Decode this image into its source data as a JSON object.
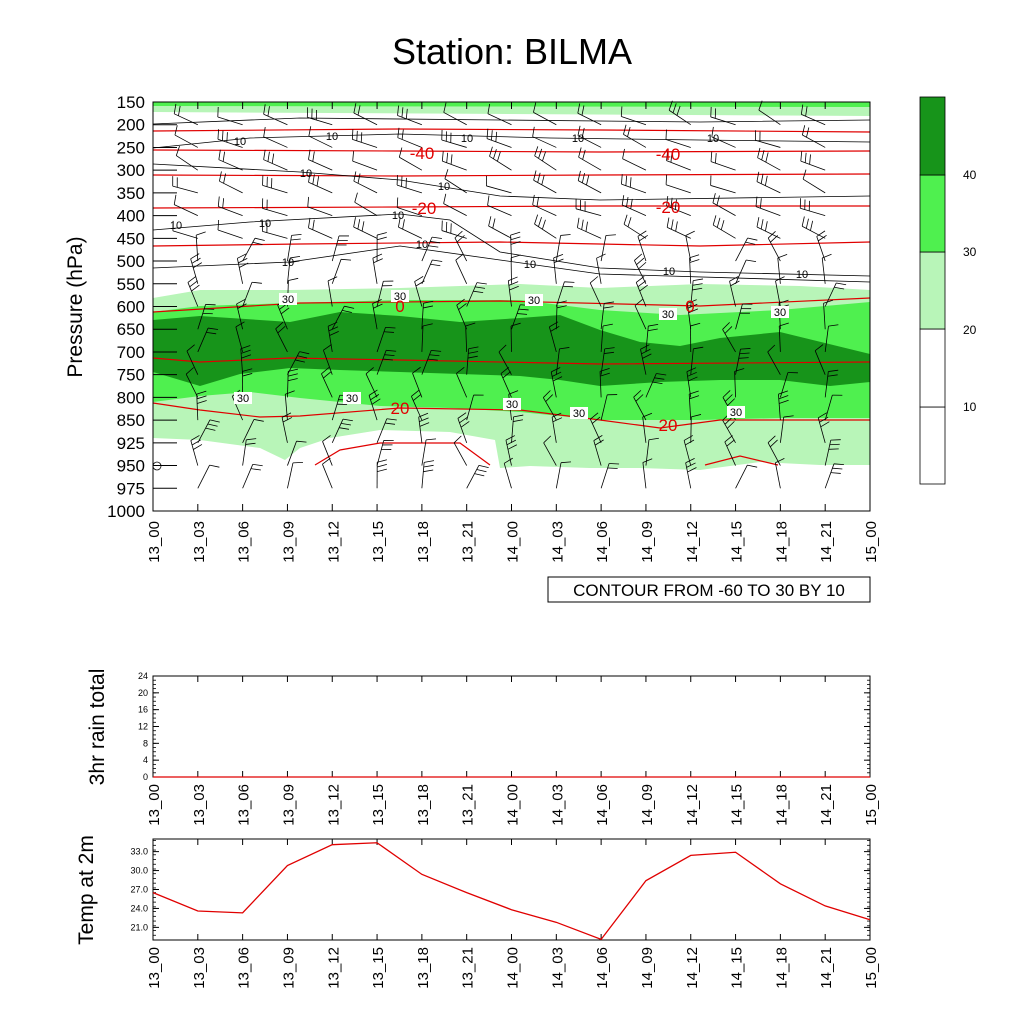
{
  "title": "Station: BILMA",
  "contour_note": "CONTOUR FROM -60 TO 30 BY 10",
  "colors": {
    "band_light": "#b8f5b8",
    "band_mid": "#4ff04f",
    "band_dark": "#17941a",
    "red": "#e00000"
  },
  "chart_data": [
    {
      "type": "heatmap",
      "ylabel": "Pressure (hPa)",
      "y_ticks": [
        150,
        200,
        250,
        300,
        350,
        400,
        450,
        500,
        550,
        600,
        650,
        700,
        750,
        800,
        850,
        925,
        950,
        975,
        1000
      ],
      "x_ticks": [
        "13_00",
        "13_03",
        "13_06",
        "13_09",
        "13_12",
        "13_15",
        "13_18",
        "13_21",
        "14_00",
        "14_03",
        "14_06",
        "14_09",
        "14_12",
        "14_15",
        "14_18",
        "14_21",
        "15_00"
      ],
      "legend": {
        "levels": [
          "10",
          "20",
          "30",
          "40"
        ]
      },
      "contour_labels_black": [
        "10",
        "30"
      ],
      "contour_labels_red": [
        "-40",
        "-20",
        "0",
        "20"
      ],
      "fill_levels": [
        20,
        30,
        40
      ],
      "temperature_contours": [
        -40,
        -20,
        0,
        20
      ]
    },
    {
      "type": "line",
      "ylabel": "3hr rain total",
      "y_ticks": [
        "0",
        "4",
        "8",
        "12",
        "16",
        "20",
        "24"
      ],
      "ylim": [
        0,
        24
      ],
      "x_ticks": [
        "13_00",
        "13_03",
        "13_06",
        "13_09",
        "13_12",
        "13_15",
        "13_18",
        "13_21",
        "14_00",
        "14_03",
        "14_06",
        "14_09",
        "14_12",
        "14_15",
        "14_18",
        "14_21",
        "15_00"
      ],
      "values": [
        0,
        0,
        0,
        0,
        0,
        0,
        0,
        0,
        0,
        0,
        0,
        0,
        0,
        0,
        0,
        0,
        0
      ]
    },
    {
      "type": "line",
      "ylabel": "Temp at 2m",
      "y_ticks": [
        "21.0",
        "24.0",
        "27.0",
        "30.0",
        "33.0"
      ],
      "ylim": [
        19.0,
        35.0
      ],
      "x_ticks": [
        "13_00",
        "13_03",
        "13_06",
        "13_09",
        "13_12",
        "13_15",
        "13_18",
        "13_21",
        "14_00",
        "14_03",
        "14_06",
        "14_09",
        "14_12",
        "14_15",
        "14_18",
        "14_21",
        "15_00"
      ],
      "values": [
        26.5,
        23.6,
        23.3,
        30.8,
        34.1,
        34.4,
        29.4,
        26.5,
        23.8,
        21.8,
        19.1,
        28.4,
        32.4,
        32.9,
        27.9,
        24.4,
        22.2
      ]
    }
  ]
}
